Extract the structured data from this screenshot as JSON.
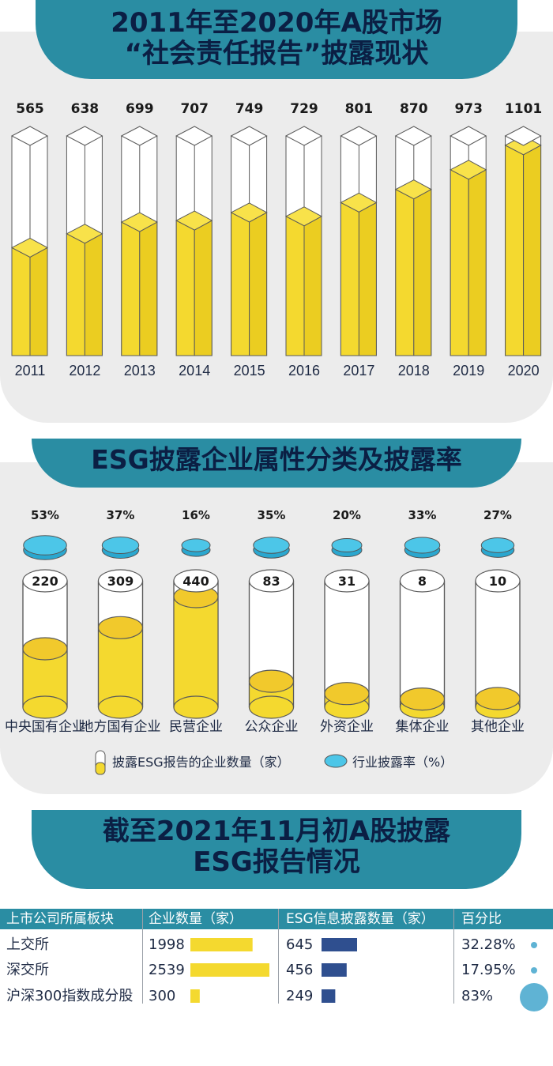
{
  "section1": {
    "title_line1": "2011年至2020年A股市场",
    "title_line2": "“社会责任报告”披露现状"
  },
  "section2": {
    "title": "ESG披露企业属性分类及披露率",
    "legend_count": "披露ESG报告的企业数量（家）",
    "legend_rate": "行业披露率（%）"
  },
  "section3": {
    "title_line1": "截至2021年11月初A股披露",
    "title_line2": "ESG报告情况",
    "headers": [
      "上市公司所属板块",
      "企业数量（家）",
      "ESG信息披露数量（家）",
      "百分比"
    ],
    "rows": [
      {
        "board": "上交所",
        "companies": "1998",
        "esg": "645",
        "pct": "32.28%"
      },
      {
        "board": "深交所",
        "companies": "2539",
        "esg": "456",
        "pct": "17.95%"
      },
      {
        "board": "沪深300指数成分股",
        "companies": "300",
        "esg": "249",
        "pct": "83%"
      }
    ]
  },
  "colors": {
    "accent": "#2a8da3",
    "navy": "#0b1f44",
    "yellow": "#f4d92f",
    "cyan": "#4cc6e8",
    "bar_blue": "#2f4f8f",
    "panel": "#ececec"
  },
  "chart_data": [
    {
      "type": "bar",
      "categories": [
        "2011",
        "2012",
        "2013",
        "2014",
        "2015",
        "2016",
        "2017",
        "2018",
        "2019",
        "2020"
      ],
      "values": [
        565,
        638,
        699,
        707,
        749,
        729,
        801,
        870,
        973,
        1101
      ]
    },
    {
      "type": "bar",
      "categories": [
        "中央国有企业",
        "地方国有企业",
        "民营企业",
        "公众企业",
        "外资企业",
        "集体企业",
        "其他企业"
      ],
      "series": [
        {
          "name": "披露ESG报告的企业数量（家）",
          "values": [
            220,
            309,
            440,
            83,
            31,
            8,
            10
          ]
        },
        {
          "name": "行业披露率（%）",
          "values": [
            53,
            37,
            16,
            35,
            20,
            33,
            27
          ],
          "labels": [
            "53%",
            "37%",
            "16%",
            "35%",
            "20%",
            "33%",
            "27%"
          ]
        }
      ]
    },
    {
      "type": "table",
      "categories": [
        "上交所",
        "深交所",
        "沪深300指数成分股"
      ],
      "series": [
        {
          "name": "企业数量（家）",
          "values": [
            1998,
            2539,
            300
          ]
        },
        {
          "name": "ESG信息披露数量（家）",
          "values": [
            645,
            456,
            249
          ]
        },
        {
          "name": "百分比",
          "values": [
            32.28,
            17.95,
            83
          ]
        }
      ]
    }
  ]
}
